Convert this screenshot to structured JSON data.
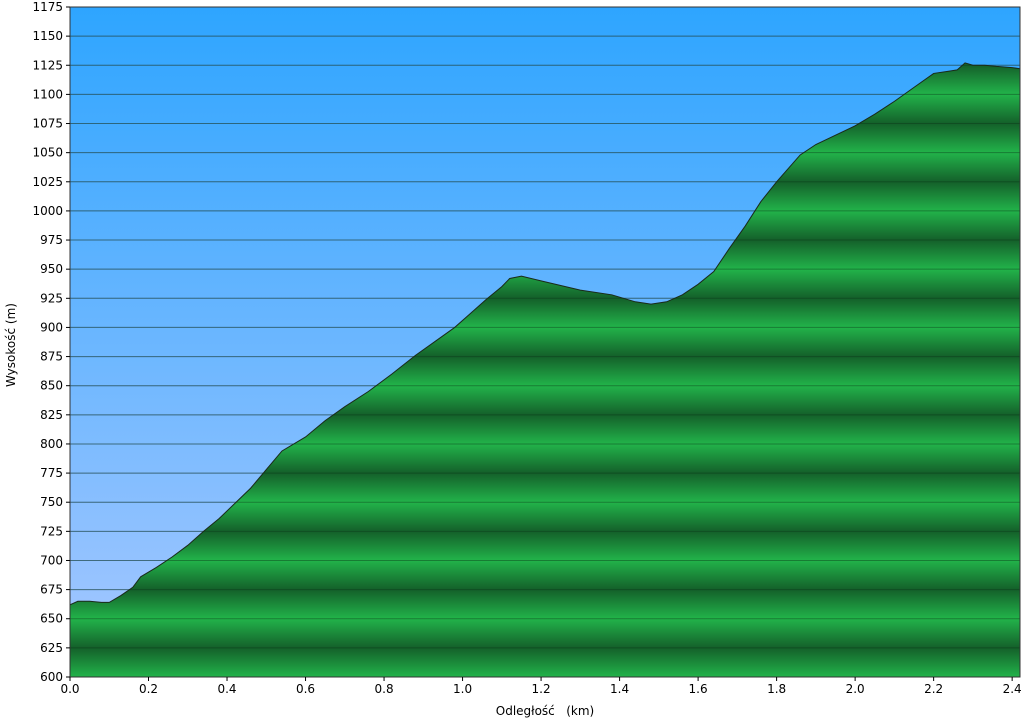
{
  "chart_data": {
    "type": "area",
    "title": "",
    "xlabel": "Odległość   (km)",
    "ylabel": "Wysokość (m)",
    "xlim": [
      0.0,
      2.42
    ],
    "ylim": [
      600,
      1175
    ],
    "x_ticks": [
      "0.0",
      "0.2",
      "0.4",
      "0.6",
      "0.8",
      "1.0",
      "1.2",
      "1.4",
      "1.6",
      "1.8",
      "2.0",
      "2.2",
      "2.4"
    ],
    "y_ticks": [
      "600",
      "625",
      "650",
      "675",
      "700",
      "725",
      "750",
      "775",
      "800",
      "825",
      "850",
      "875",
      "900",
      "925",
      "950",
      "975",
      "1000",
      "1025",
      "1050",
      "1075",
      "1100",
      "1125",
      "1150",
      "1175"
    ],
    "grid": true,
    "legend": "none",
    "colors": {
      "sky_top": "#2ea5ff",
      "sky_bottom": "#a8c8ff",
      "fill_light": "#22b34a",
      "fill_dark": "#14602a",
      "outline": "#1a2a1a"
    },
    "series": [
      {
        "x": [
          0.0,
          0.02,
          0.05,
          0.08,
          0.1,
          0.13,
          0.16,
          0.18,
          0.22,
          0.26,
          0.3,
          0.34,
          0.38,
          0.42,
          0.46,
          0.5,
          0.54,
          0.6,
          0.65,
          0.7,
          0.76,
          0.82,
          0.88,
          0.93,
          0.98,
          1.02,
          1.06,
          1.1,
          1.12,
          1.15,
          1.2,
          1.3,
          1.38,
          1.44,
          1.48,
          1.52,
          1.56,
          1.6,
          1.64,
          1.68,
          1.72,
          1.76,
          1.8,
          1.86,
          1.9,
          1.95,
          2.0,
          2.05,
          2.1,
          2.15,
          2.2,
          2.24,
          2.26,
          2.28,
          2.3,
          2.33,
          2.36,
          2.4,
          2.42
        ],
        "y": [
          662,
          665,
          665,
          664,
          664,
          670,
          677,
          686,
          694,
          703,
          713,
          725,
          736,
          749,
          762,
          778,
          794,
          806,
          820,
          832,
          845,
          860,
          876,
          888,
          900,
          912,
          924,
          935,
          942,
          944,
          940,
          932,
          928,
          922,
          920,
          922,
          928,
          937,
          948,
          968,
          987,
          1008,
          1025,
          1048,
          1057,
          1065,
          1073,
          1083,
          1094,
          1106,
          1118,
          1120,
          1121,
          1127,
          1125,
          1125,
          1124,
          1123,
          1122
        ]
      }
    ]
  }
}
